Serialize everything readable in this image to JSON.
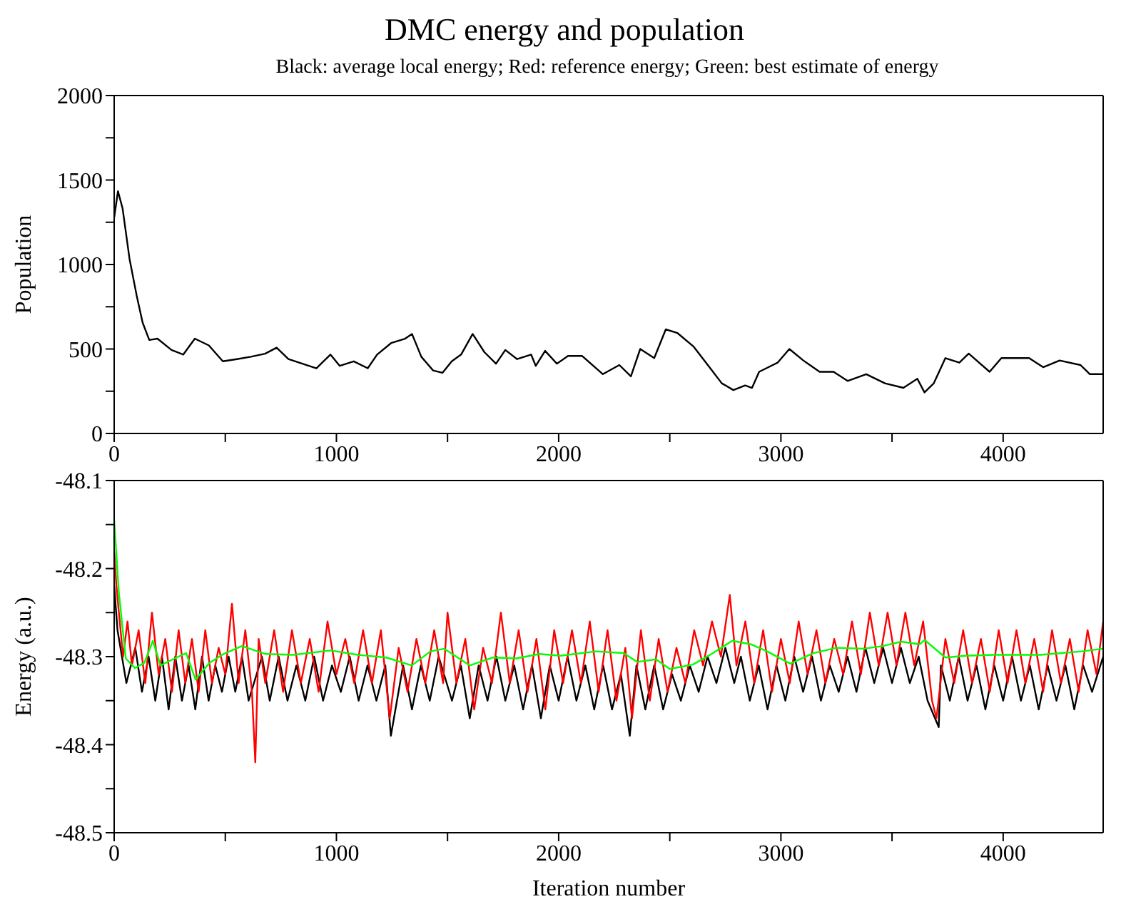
{
  "chart_data": [
    {
      "type": "line",
      "title": "DMC energy and population",
      "subtitle": "Black: average local energy; Red: reference energy; Green: best estimate of energy",
      "ylabel": "Population",
      "marker": "none",
      "xlim": [
        0,
        4450
      ],
      "xticks": [
        0,
        {
          "value": 500,
          "label": null
        },
        1000,
        {
          "value": 1500,
          "label": null
        },
        2000,
        {
          "value": 2500,
          "label": null
        },
        3000,
        {
          "value": 3500,
          "label": null
        },
        4000
      ],
      "ylim": [
        0,
        2000
      ],
      "yticks": [
        0,
        {
          "value": 250,
          "label": null
        },
        500,
        {
          "value": 750,
          "label": null
        },
        1000,
        {
          "value": 1250,
          "label": null
        },
        1500,
        {
          "value": 1750,
          "label": null
        },
        2000
      ],
      "series": [
        {
          "color": "#000000",
          "x": [
            0,
            17,
            38,
            69,
            101,
            128,
            158,
            195,
            258,
            311,
            363,
            426,
            489,
            552,
            615,
            679,
            731,
            784,
            847,
            910,
            973,
            1015,
            1078,
            1141,
            1183,
            1246,
            1309,
            1340,
            1382,
            1435,
            1477,
            1519,
            1561,
            1613,
            1666,
            1718,
            1760,
            1813,
            1876,
            1897,
            1939,
            1992,
            2042,
            2105,
            2199,
            2273,
            2325,
            2367,
            2430,
            2482,
            2535,
            2608,
            2671,
            2734,
            2786,
            2839,
            2870,
            2902,
            2985,
            3038,
            3101,
            3174,
            3237,
            3300,
            3384,
            3468,
            3551,
            3614,
            3646,
            3688,
            3740,
            3803,
            3845,
            3939,
            3992,
            4117,
            4180,
            4254,
            4348,
            4390,
            4450
          ],
          "values": [
            1277,
            1434,
            1331,
            1034,
            818,
            656,
            553,
            561,
            494,
            467,
            561,
            521,
            427,
            440,
            454,
            472,
            508,
            440,
            413,
            386,
            467,
            400,
            427,
            386,
            467,
            535,
            561,
            589,
            454,
            373,
            359,
            427,
            467,
            589,
            481,
            413,
            494,
            440,
            467,
            400,
            489,
            413,
            459,
            459,
            351,
            405,
            338,
            500,
            446,
            616,
            594,
            513,
            405,
            297,
            257,
            284,
            270,
            365,
            419,
            500,
            432,
            365,
            365,
            311,
            351,
            297,
            270,
            324,
            243,
            297,
            446,
            419,
            473,
            365,
            446,
            446,
            392,
            432,
            405,
            351,
            351
          ]
        }
      ]
    },
    {
      "type": "line",
      "xlabel": "Iteration number",
      "ylabel": "Energy (a.u.)",
      "marker": "none",
      "xlim": [
        0,
        4450
      ],
      "xticks": [
        0,
        {
          "value": 500,
          "label": null
        },
        1000,
        {
          "value": 1500,
          "label": null
        },
        2000,
        {
          "value": 2500,
          "label": null
        },
        3000,
        {
          "value": 3500,
          "label": null
        },
        4000
      ],
      "ylim": [
        -48.5,
        -48.1
      ],
      "yticks": [
        -48.5,
        {
          "value": -48.45,
          "label": null
        },
        -48.4,
        {
          "value": -48.35,
          "label": null
        },
        -48.3,
        {
          "value": -48.25,
          "label": null
        },
        -48.2,
        {
          "value": -48.15,
          "label": null
        },
        -48.1
      ],
      "series": [
        {
          "color": "#000000",
          "x": [
            0,
            15,
            35,
            55,
            95,
            125,
            155,
            185,
            215,
            245,
            275,
            305,
            335,
            365,
            395,
            425,
            455,
            485,
            515,
            545,
            575,
            605,
            665,
            700,
            740,
            780,
            820,
            860,
            900,
            940,
            980,
            1020,
            1060,
            1100,
            1140,
            1180,
            1220,
            1245,
            1300,
            1340,
            1380,
            1420,
            1460,
            1520,
            1560,
            1600,
            1640,
            1680,
            1720,
            1760,
            1800,
            1840,
            1880,
            1920,
            1960,
            2000,
            2040,
            2080,
            2120,
            2160,
            2200,
            2240,
            2280,
            2320,
            2350,
            2390,
            2430,
            2470,
            2510,
            2550,
            2590,
            2630,
            2670,
            2710,
            2750,
            2790,
            2820,
            2860,
            2900,
            2940,
            2980,
            3020,
            3060,
            3100,
            3140,
            3180,
            3220,
            3260,
            3300,
            3340,
            3380,
            3420,
            3460,
            3500,
            3540,
            3580,
            3620,
            3660,
            3710,
            3720,
            3760,
            3800,
            3840,
            3880,
            3920,
            3960,
            4000,
            4040,
            4080,
            4120,
            4160,
            4200,
            4240,
            4280,
            4320,
            4360,
            4400,
            4450
          ],
          "values": [
            -48.22,
            -48.27,
            -48.3,
            -48.33,
            -48.29,
            -48.34,
            -48.3,
            -48.35,
            -48.3,
            -48.36,
            -48.3,
            -48.35,
            -48.31,
            -48.36,
            -48.3,
            -48.35,
            -48.31,
            -48.34,
            -48.3,
            -48.34,
            -48.3,
            -48.35,
            -48.3,
            -48.35,
            -48.3,
            -48.35,
            -48.31,
            -48.35,
            -48.3,
            -48.35,
            -48.31,
            -48.34,
            -48.3,
            -48.35,
            -48.31,
            -48.35,
            -48.31,
            -48.39,
            -48.31,
            -48.36,
            -48.31,
            -48.35,
            -48.3,
            -48.35,
            -48.31,
            -48.37,
            -48.31,
            -48.35,
            -48.3,
            -48.35,
            -48.31,
            -48.36,
            -48.31,
            -48.37,
            -48.31,
            -48.35,
            -48.3,
            -48.35,
            -48.31,
            -48.36,
            -48.31,
            -48.36,
            -48.32,
            -48.39,
            -48.31,
            -48.36,
            -48.31,
            -48.36,
            -48.32,
            -48.35,
            -48.31,
            -48.34,
            -48.3,
            -48.33,
            -48.29,
            -48.33,
            -48.3,
            -48.35,
            -48.31,
            -48.36,
            -48.31,
            -48.35,
            -48.3,
            -48.34,
            -48.3,
            -48.35,
            -48.31,
            -48.34,
            -48.3,
            -48.34,
            -48.29,
            -48.33,
            -48.29,
            -48.33,
            -48.29,
            -48.33,
            -48.3,
            -48.35,
            -48.38,
            -48.31,
            -48.35,
            -48.3,
            -48.35,
            -48.31,
            -48.36,
            -48.31,
            -48.35,
            -48.3,
            -48.35,
            -48.31,
            -48.36,
            -48.31,
            -48.35,
            -48.31,
            -48.36,
            -48.31,
            -48.34,
            -48.3
          ]
        },
        {
          "color": "#ff0000",
          "x": [
            0,
            10,
            25,
            40,
            60,
            80,
            110,
            140,
            170,
            200,
            230,
            260,
            290,
            320,
            350,
            380,
            410,
            440,
            470,
            500,
            530,
            560,
            590,
            620,
            635,
            650,
            680,
            720,
            760,
            800,
            840,
            880,
            920,
            960,
            1000,
            1040,
            1080,
            1120,
            1160,
            1200,
            1240,
            1280,
            1320,
            1360,
            1400,
            1440,
            1480,
            1500,
            1540,
            1580,
            1620,
            1660,
            1700,
            1740,
            1780,
            1820,
            1860,
            1900,
            1940,
            1980,
            2020,
            2060,
            2100,
            2140,
            2180,
            2220,
            2260,
            2300,
            2330,
            2370,
            2410,
            2450,
            2490,
            2530,
            2570,
            2610,
            2650,
            2690,
            2730,
            2770,
            2800,
            2840,
            2880,
            2920,
            2960,
            3000,
            3040,
            3080,
            3120,
            3160,
            3200,
            3240,
            3280,
            3320,
            3360,
            3400,
            3440,
            3480,
            3520,
            3560,
            3600,
            3640,
            3680,
            3700,
            3740,
            3780,
            3820,
            3860,
            3900,
            3940,
            3980,
            4020,
            4060,
            4100,
            4140,
            4180,
            4220,
            4260,
            4300,
            4340,
            4380,
            4420,
            4450
          ],
          "values": [
            -48.18,
            -48.22,
            -48.26,
            -48.3,
            -48.26,
            -48.31,
            -48.27,
            -48.33,
            -48.25,
            -48.32,
            -48.28,
            -48.34,
            -48.27,
            -48.33,
            -48.28,
            -48.34,
            -48.27,
            -48.33,
            -48.29,
            -48.32,
            -48.24,
            -48.33,
            -48.27,
            -48.34,
            -48.42,
            -48.28,
            -48.33,
            -48.27,
            -48.34,
            -48.27,
            -48.33,
            -48.28,
            -48.34,
            -48.26,
            -48.32,
            -48.28,
            -48.33,
            -48.27,
            -48.33,
            -48.27,
            -48.37,
            -48.29,
            -48.34,
            -48.28,
            -48.33,
            -48.27,
            -48.33,
            -48.25,
            -48.33,
            -48.28,
            -48.36,
            -48.29,
            -48.33,
            -48.25,
            -48.33,
            -48.27,
            -48.34,
            -48.28,
            -48.36,
            -48.27,
            -48.33,
            -48.27,
            -48.33,
            -48.26,
            -48.34,
            -48.27,
            -48.35,
            -48.29,
            -48.37,
            -48.27,
            -48.35,
            -48.28,
            -48.34,
            -48.29,
            -48.33,
            -48.27,
            -48.31,
            -48.26,
            -48.3,
            -48.23,
            -48.31,
            -48.26,
            -48.33,
            -48.27,
            -48.34,
            -48.28,
            -48.33,
            -48.26,
            -48.32,
            -48.27,
            -48.33,
            -48.28,
            -48.32,
            -48.26,
            -48.32,
            -48.25,
            -48.31,
            -48.25,
            -48.31,
            -48.25,
            -48.31,
            -48.26,
            -48.35,
            -48.37,
            -48.28,
            -48.33,
            -48.27,
            -48.33,
            -48.28,
            -48.34,
            -48.27,
            -48.33,
            -48.27,
            -48.33,
            -48.28,
            -48.34,
            -48.27,
            -48.33,
            -48.28,
            -48.34,
            -48.27,
            -48.32,
            -48.26
          ]
        },
        {
          "color": "#00ff00",
          "x": [
            0,
            21,
            52,
            94,
            136,
            174,
            209,
            272,
            324,
            366,
            429,
            492,
            575,
            680,
            805,
            973,
            1098,
            1224,
            1339,
            1423,
            1485,
            1600,
            1705,
            1810,
            1914,
            2008,
            2167,
            2292,
            2354,
            2438,
            2500,
            2604,
            2688,
            2781,
            2865,
            2938,
            3042,
            3146,
            3250,
            3375,
            3458,
            3542,
            3625,
            3646,
            3740,
            3833,
            3958,
            4167,
            4354,
            4450
          ],
          "values": [
            -48.144,
            -48.227,
            -48.302,
            -48.313,
            -48.307,
            -48.282,
            -48.31,
            -48.302,
            -48.296,
            -48.326,
            -48.307,
            -48.297,
            -48.288,
            -48.297,
            -48.298,
            -48.293,
            -48.298,
            -48.301,
            -48.31,
            -48.294,
            -48.291,
            -48.31,
            -48.301,
            -48.302,
            -48.297,
            -48.299,
            -48.294,
            -48.296,
            -48.306,
            -48.303,
            -48.314,
            -48.309,
            -48.297,
            -48.282,
            -48.286,
            -48.294,
            -48.308,
            -48.296,
            -48.29,
            -48.291,
            -48.288,
            -48.283,
            -48.286,
            -48.281,
            -48.301,
            -48.299,
            -48.298,
            -48.298,
            -48.294,
            -48.291
          ]
        }
      ]
    }
  ]
}
